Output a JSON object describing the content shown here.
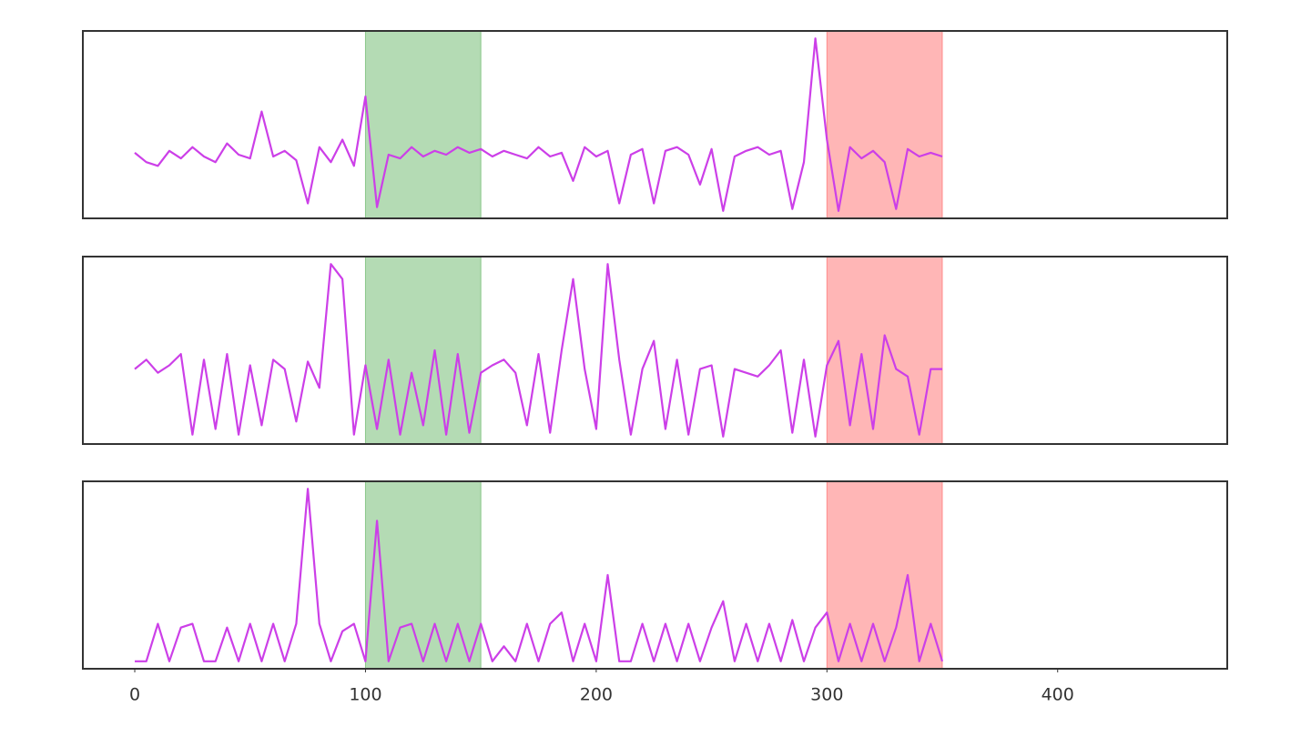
{
  "chart_data": [
    {
      "type": "line",
      "xlim": [
        -22.5,
        473.5
      ],
      "ylim": [
        0,
        100
      ],
      "spans": [
        {
          "range": [
            100,
            150
          ],
          "color": "#6ab86a"
        },
        {
          "range": [
            300,
            350
          ],
          "color": "#ff6e6e"
        }
      ],
      "x": [
        0,
        5,
        10,
        15,
        20,
        25,
        30,
        35,
        40,
        45,
        50,
        55,
        60,
        65,
        70,
        75,
        80,
        85,
        90,
        95,
        100,
        105,
        110,
        115,
        120,
        125,
        130,
        135,
        140,
        145,
        150,
        155,
        160,
        165,
        170,
        175,
        180,
        185,
        190,
        195,
        200,
        205,
        210,
        215,
        220,
        225,
        230,
        235,
        240,
        245,
        250,
        255,
        260,
        265,
        270,
        275,
        280,
        285,
        290,
        295,
        300,
        305,
        310,
        315,
        320,
        325,
        330,
        335,
        340,
        345,
        350
      ],
      "series": [
        {
          "color": "#cc3fe8",
          "values": [
            35,
            30,
            28,
            36,
            32,
            38,
            33,
            30,
            40,
            34,
            32,
            57,
            33,
            36,
            31,
            8,
            38,
            30,
            42,
            28,
            65,
            6,
            34,
            32,
            38,
            33,
            36,
            34,
            38,
            35,
            37,
            33,
            36,
            34,
            32,
            38,
            33,
            35,
            20,
            38,
            33,
            36,
            8,
            34,
            37,
            8,
            36,
            38,
            34,
            18,
            37,
            4,
            33,
            36,
            38,
            34,
            36,
            5,
            30,
            96,
            42,
            4,
            38,
            32,
            36,
            30,
            5,
            37,
            33,
            35,
            33
          ]
        }
      ]
    },
    {
      "type": "line",
      "xlim": [
        -22.5,
        473.5
      ],
      "ylim": [
        0,
        100
      ],
      "spans": [
        {
          "range": [
            100,
            150
          ],
          "color": "#6ab86a"
        },
        {
          "range": [
            300,
            350
          ],
          "color": "#ff6e6e"
        }
      ],
      "x": [
        0,
        5,
        10,
        15,
        20,
        25,
        30,
        35,
        40,
        45,
        50,
        55,
        60,
        65,
        70,
        75,
        80,
        85,
        90,
        95,
        100,
        105,
        110,
        115,
        120,
        125,
        130,
        135,
        140,
        145,
        150,
        155,
        160,
        165,
        170,
        175,
        180,
        185,
        190,
        195,
        200,
        205,
        210,
        215,
        220,
        225,
        230,
        235,
        240,
        245,
        250,
        255,
        260,
        265,
        270,
        275,
        280,
        285,
        290,
        295,
        300,
        305,
        310,
        315,
        320,
        325,
        330,
        335,
        340,
        345,
        350
      ],
      "series": [
        {
          "color": "#cc3fe8",
          "values": [
            40,
            45,
            38,
            42,
            48,
            5,
            45,
            8,
            48,
            5,
            42,
            10,
            45,
            40,
            12,
            44,
            30,
            96,
            88,
            5,
            42,
            8,
            45,
            5,
            38,
            10,
            50,
            5,
            48,
            6,
            38,
            42,
            45,
            38,
            10,
            48,
            6,
            50,
            88,
            40,
            8,
            96,
            45,
            5,
            40,
            55,
            8,
            45,
            5,
            40,
            42,
            4,
            40,
            38,
            36,
            42,
            50,
            6,
            45,
            4,
            42,
            55,
            10,
            48,
            8,
            58,
            40,
            36,
            5,
            40,
            40
          ]
        }
      ]
    },
    {
      "type": "line",
      "xlim": [
        -22.5,
        473.5
      ],
      "ylim": [
        0,
        100
      ],
      "spans": [
        {
          "range": [
            100,
            150
          ],
          "color": "#6ab86a"
        },
        {
          "range": [
            300,
            350
          ],
          "color": "#ff6e6e"
        }
      ],
      "x": [
        0,
        5,
        10,
        15,
        20,
        25,
        30,
        35,
        40,
        45,
        50,
        55,
        60,
        65,
        70,
        75,
        80,
        85,
        90,
        95,
        100,
        105,
        110,
        115,
        120,
        125,
        130,
        135,
        140,
        145,
        150,
        155,
        160,
        165,
        170,
        175,
        180,
        185,
        190,
        195,
        200,
        205,
        210,
        215,
        220,
        225,
        230,
        235,
        240,
        245,
        250,
        255,
        260,
        265,
        270,
        275,
        280,
        285,
        290,
        295,
        300,
        305,
        310,
        315,
        320,
        325,
        330,
        335,
        340,
        345,
        350
      ],
      "series": [
        {
          "color": "#cc3fe8",
          "values": [
            4,
            4,
            24,
            4,
            22,
            24,
            4,
            4,
            22,
            4,
            24,
            4,
            24,
            4,
            24,
            96,
            24,
            4,
            20,
            24,
            4,
            79,
            4,
            22,
            24,
            4,
            24,
            4,
            24,
            4,
            24,
            4,
            12,
            4,
            24,
            4,
            24,
            30,
            4,
            24,
            4,
            50,
            4,
            4,
            24,
            4,
            24,
            4,
            24,
            4,
            22,
            36,
            4,
            24,
            4,
            24,
            4,
            26,
            4,
            22,
            30,
            4,
            24,
            4,
            24,
            4,
            22,
            50,
            4,
            24,
            4
          ]
        }
      ],
      "xticks": [
        0,
        100,
        200,
        300,
        400
      ]
    }
  ]
}
